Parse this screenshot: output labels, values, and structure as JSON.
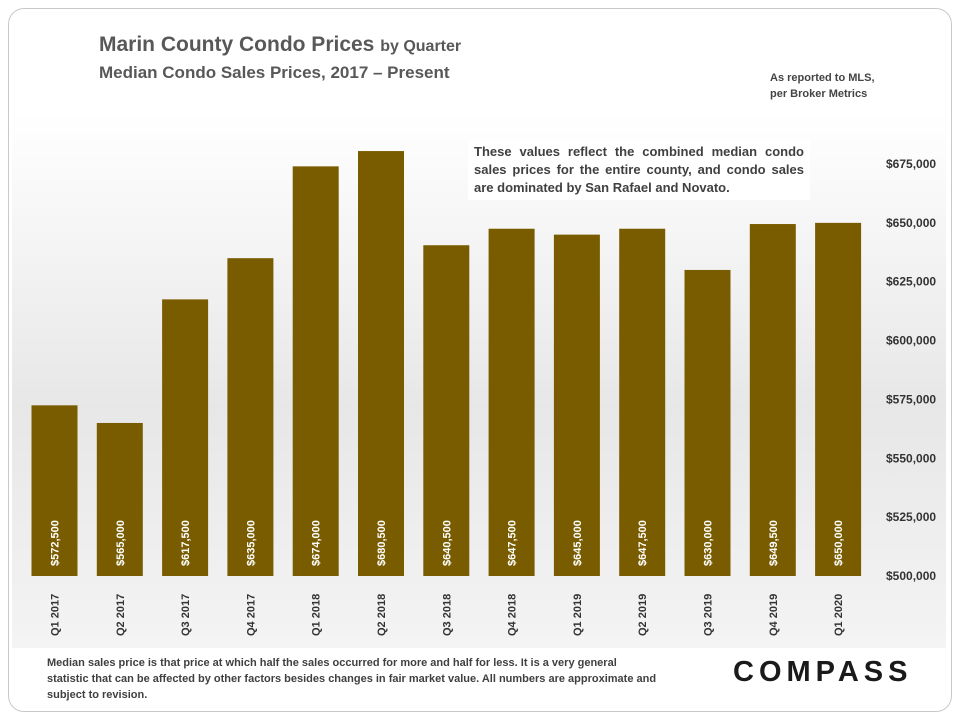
{
  "header": {
    "title": "Marin County Condo Prices",
    "title_suffix": "by Quarter",
    "subtitle": "Median Condo Sales Prices, 2017 – Present",
    "source_line1": "As reported to MLS,",
    "source_line2": "per Broker Metrics"
  },
  "annotation": "These values reflect the combined median condo sales prices for the entire county, and condo sales are dominated by San Rafael and Novato.",
  "footer": "Median sales price is that price at which half the sales occurred for more and half for less. It is a very general statistic that can be affected by other factors besides changes in fair market value. All numbers are approximate and subject to revision.",
  "logo": "COMPASS",
  "colors": {
    "bar": "#7a5c00",
    "label": "#ffffff",
    "axis_text": "#333333"
  },
  "chart_data": {
    "type": "bar",
    "title": "Marin County Condo Prices by Quarter",
    "xlabel": "",
    "ylabel": "",
    "ylim": [
      500000,
      680500
    ],
    "yticks": [
      500000,
      525000,
      550000,
      575000,
      600000,
      625000,
      650000,
      675000
    ],
    "ytick_labels": [
      "$500,000",
      "$525,000",
      "$550,000",
      "$575,000",
      "$600,000",
      "$625,000",
      "$650,000",
      "$675,000"
    ],
    "categories": [
      "Q1 2017",
      "Q2 2017",
      "Q3 2017",
      "Q4 2017",
      "Q1 2018",
      "Q2 2018",
      "Q3 2018",
      "Q4 2018",
      "Q1 2019",
      "Q2 2019",
      "Q3 2019",
      "Q4 2019",
      "Q1 2020"
    ],
    "values": [
      572500,
      565000,
      617500,
      635000,
      674000,
      680500,
      640500,
      647500,
      645000,
      647500,
      630000,
      649500,
      650000
    ],
    "data_labels": [
      "$572,500",
      "$565,000",
      "$617,500",
      "$635,000",
      "$674,000",
      "$680,500",
      "$640,500",
      "$647,500",
      "$645,000",
      "$647,500",
      "$630,000",
      "$649,500",
      "$650,000"
    ]
  }
}
